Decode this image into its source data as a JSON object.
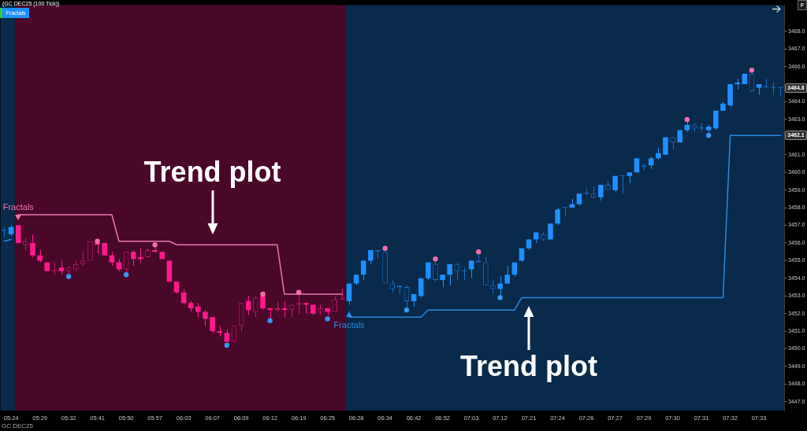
{
  "chart_data": {
    "type": "candlestick",
    "title": "(GC DEC25 (100 Tick))",
    "categories": [
      null,
      "05:24",
      null,
      null,
      null,
      "05:29",
      null,
      null,
      null,
      "05:32",
      null,
      null,
      null,
      "05:41",
      null,
      null,
      null,
      "05:50",
      null,
      null,
      null,
      "05:57",
      null,
      null,
      null,
      "06:03",
      null,
      null,
      null,
      "06:07",
      null,
      null,
      null,
      "06:09",
      null,
      null,
      null,
      "06:12",
      null,
      null,
      null,
      "06:19",
      null,
      null,
      null,
      "06:25",
      null,
      null,
      null,
      "06:28",
      null,
      null,
      null,
      "06:34",
      null,
      null,
      null,
      "06:42",
      null,
      null,
      null,
      "06:52",
      null,
      null,
      null,
      "07:03",
      null,
      null,
      null,
      "07:12",
      null,
      null,
      null,
      "07:21",
      null,
      null,
      null,
      "07:24",
      null,
      null,
      null,
      "07:26",
      null,
      null,
      null,
      "07:27",
      null,
      null,
      null,
      "07:29",
      null,
      null,
      null,
      "07:30",
      null,
      null,
      null,
      "07:31",
      null,
      null,
      null,
      "07:32",
      null,
      null,
      null,
      "07:33",
      null,
      null,
      null
    ],
    "series": [
      {
        "color": "#ff1a8c",
        "colors": [
          null,
          null,
          "#ff1a8c",
          "#c2186e",
          "#ff1a8c",
          "#ff1a8c",
          "#ff1a8c",
          "#c2186e",
          "#ff1a8c",
          "#c2186e",
          "#c2186e",
          "#c2186e",
          "#c2186e",
          "#ff1a8c",
          "#ff1a8c",
          "#ff1a8c",
          "#ff1a8c",
          "#c2186e",
          "#ff1a8c",
          "#ff1a8c",
          "#c2186e",
          "#ff1a8c",
          "#ff1a8c",
          "#ff1a8c",
          "#ff1a8c",
          "#ff1a8c",
          "#ff1a8c",
          "#ff1a8c",
          "#ff1a8c",
          "#ff1a8c",
          "#ff1a8c",
          "#ff1a8c",
          "#c2186e",
          "#c2186e",
          "#ff1a8c",
          "#c2186e",
          "#ff1a8c",
          "#ff1a8c",
          "#c2186e",
          "#ff1a8c",
          "#c2186e",
          "#c2186e",
          "#ff1a8c",
          "#ff1a8c",
          "#c2186e",
          "#ff1a8c",
          "#c2186e",
          "#c2186e",
          null,
          null,
          null,
          null,
          null,
          null,
          null,
          null,
          null,
          null,
          null,
          null,
          null,
          null,
          null,
          null,
          null,
          null,
          null,
          null,
          null,
          null,
          null,
          null,
          null,
          null,
          null,
          null,
          null,
          null,
          null,
          null,
          null,
          null,
          null,
          null,
          null,
          null,
          null,
          null,
          null,
          null,
          null,
          null,
          null,
          null,
          null,
          null,
          null,
          null,
          null,
          null,
          null,
          null,
          null,
          null,
          null,
          null,
          null,
          null,
          null
        ],
        "ohlc": [
          null,
          null,
          [
            3457.0,
            3457.0,
            3456.0,
            3456.0
          ],
          [
            3455.9,
            3456.3,
            3455.6,
            3456.1
          ],
          [
            3456.0,
            3456.5,
            3455.2,
            3455.3
          ],
          [
            3455.3,
            3455.6,
            3454.9,
            3455.0
          ],
          [
            3454.9,
            3454.9,
            3454.4,
            3454.4
          ],
          [
            3454.4,
            3454.9,
            3454.2,
            3454.4
          ],
          [
            3454.6,
            3455.0,
            3454.2,
            3454.4
          ],
          [
            3454.4,
            3454.7,
            3454.2,
            3454.6
          ],
          [
            3454.5,
            3455.0,
            3454.4,
            3454.8
          ],
          [
            3454.8,
            3455.5,
            3454.7,
            3455.0
          ],
          [
            3455.0,
            3456.1,
            3455.0,
            3456.1
          ],
          [
            3456.0,
            3456.1,
            3455.4,
            3455.9
          ],
          [
            3456.0,
            3456.0,
            3455.3,
            3455.3
          ],
          [
            3455.3,
            3455.5,
            3454.7,
            3454.9
          ],
          [
            3454.9,
            3455.1,
            3454.4,
            3454.5
          ],
          [
            3454.5,
            3455.5,
            3454.3,
            3455.5
          ],
          [
            3455.5,
            3455.6,
            3454.7,
            3455.1
          ],
          [
            3455.2,
            3455.7,
            3454.9,
            3455.1
          ],
          [
            3455.2,
            3455.7,
            3455.2,
            3455.6
          ],
          [
            3455.6,
            3455.8,
            3455.5,
            3455.5
          ],
          [
            3455.5,
            3455.5,
            3455.1,
            3455.1
          ],
          [
            3455.0,
            3455.0,
            3453.8,
            3453.8
          ],
          [
            3453.8,
            3453.8,
            3453.1,
            3453.2
          ],
          [
            3453.2,
            3453.4,
            3452.5,
            3452.6
          ],
          [
            3452.6,
            3452.7,
            3452.1,
            3452.3
          ],
          [
            3452.4,
            3452.6,
            3451.8,
            3452.1
          ],
          [
            3452.1,
            3452.2,
            3451.3,
            3451.7
          ],
          [
            3451.8,
            3451.8,
            3450.9,
            3451.0
          ],
          [
            3451.0,
            3451.3,
            3450.7,
            3450.9
          ],
          [
            3450.9,
            3451.1,
            3450.3,
            3450.4
          ],
          [
            3450.4,
            3451.3,
            3450.4,
            3451.3
          ],
          [
            3451.3,
            3452.6,
            3451.0,
            3452.6
          ],
          [
            3452.7,
            3453.0,
            3451.9,
            3452.2
          ],
          [
            3452.1,
            3453.0,
            3451.8,
            3452.9
          ],
          [
            3453.0,
            3453.0,
            3452.2,
            3452.3
          ],
          [
            3452.3,
            3452.3,
            3451.7,
            3452.2
          ],
          [
            3452.2,
            3452.7,
            3452.1,
            3452.3
          ],
          [
            3452.3,
            3452.7,
            3451.8,
            3452.2
          ],
          [
            3452.2,
            3452.5,
            3451.8,
            3452.5
          ],
          [
            3452.5,
            3453.1,
            3452.0,
            3452.6
          ],
          [
            3452.6,
            3452.6,
            3452.0,
            3452.5
          ],
          [
            3452.5,
            3452.5,
            3451.9,
            3452.0
          ],
          [
            3452.1,
            3452.5,
            3451.9,
            3452.3
          ],
          [
            3452.3,
            3452.3,
            3451.9,
            3452.1
          ],
          [
            3452.1,
            3453.0,
            3452.1,
            3452.8
          ],
          [
            3452.8,
            3453.4,
            3452.8,
            3452.8
          ],
          null,
          null,
          null,
          null,
          null,
          null,
          null,
          null,
          null,
          null,
          null,
          null,
          null,
          null,
          null,
          null,
          null,
          null,
          null,
          null,
          null,
          null,
          null,
          null,
          null,
          null,
          null,
          null,
          null,
          null,
          null,
          null,
          null,
          null,
          null,
          null,
          null,
          null,
          null,
          null,
          null,
          null,
          null,
          null,
          null,
          null,
          null,
          null,
          null,
          null,
          null,
          null,
          null,
          null,
          null,
          null,
          null,
          null,
          null,
          null,
          null
        ]
      },
      {
        "color": "#1e90ff",
        "colors": [
          "#1a6cc0",
          "#1e90ff",
          null,
          null,
          null,
          null,
          null,
          null,
          null,
          null,
          null,
          null,
          null,
          null,
          null,
          null,
          null,
          null,
          null,
          null,
          null,
          null,
          null,
          null,
          null,
          null,
          null,
          null,
          null,
          null,
          null,
          null,
          null,
          null,
          null,
          null,
          null,
          null,
          null,
          null,
          null,
          null,
          null,
          null,
          null,
          null,
          null,
          null,
          "#1e90ff",
          "#1e90ff",
          "#1e90ff",
          "#1e90ff",
          "#1a6cc0",
          "#1a6cc0",
          "#1a6cc0",
          "#1a6cc0",
          "#1a6cc0",
          "#1e90ff",
          "#1e90ff",
          "#1e90ff",
          "#1a6cc0",
          "#1e90ff",
          "#1e90ff",
          "#1a6cc0",
          "#1a6cc0",
          "#1e90ff",
          "#1a6cc0",
          "#1a6cc0",
          "#1a6cc0",
          "#1e90ff",
          "#1e90ff",
          "#1e90ff",
          "#1e90ff",
          "#1e90ff",
          "#1e90ff",
          "#1a6cc0",
          "#1e90ff",
          "#1e90ff",
          "#1a6cc0",
          "#1e90ff",
          "#1e90ff",
          "#1a6cc0",
          "#1a6cc0",
          "#1e90ff",
          "#1a6cc0",
          "#1e90ff",
          "#1a6cc0",
          "#1e90ff",
          "#1e90ff",
          "#1a6cc0",
          "#1e90ff",
          "#1e90ff",
          "#1e90ff",
          "#1a6cc0",
          "#1e90ff",
          "#1e90ff",
          "#1a6cc0",
          "#1a6cc0",
          "#1e90ff",
          "#1e90ff",
          "#1e90ff",
          "#1e90ff",
          "#1e90ff",
          "#1e90ff",
          "#1a6cc0",
          "#1e90ff",
          "#1a6cc0",
          "#1a6cc0",
          "#1a6cc0"
        ],
        "ohlc": [
          [
            3456.7,
            3456.9,
            3456.3,
            3456.7
          ],
          [
            3456.5,
            3457.0,
            3456.4,
            3456.9
          ],
          null,
          null,
          null,
          null,
          null,
          null,
          null,
          null,
          null,
          null,
          null,
          null,
          null,
          null,
          null,
          null,
          null,
          null,
          null,
          null,
          null,
          null,
          null,
          null,
          null,
          null,
          null,
          null,
          null,
          null,
          null,
          null,
          null,
          null,
          null,
          null,
          null,
          null,
          null,
          null,
          null,
          null,
          null,
          null,
          null,
          null,
          [
            3452.7,
            3453.7,
            3452.5,
            3453.7
          ],
          [
            3453.7,
            3454.2,
            3453.6,
            3454.2
          ],
          [
            3454.2,
            3455.0,
            3453.9,
            3455.0
          ],
          [
            3455.0,
            3455.6,
            3454.8,
            3455.6
          ],
          [
            3455.6,
            3455.6,
            3455.1,
            3455.5
          ],
          [
            3455.5,
            3455.7,
            3453.7,
            3453.7
          ],
          [
            3453.7,
            3453.9,
            3453.2,
            3453.4
          ],
          [
            3453.6,
            3453.6,
            3453.1,
            3453.5
          ],
          [
            3453.5,
            3453.6,
            3452.3,
            3452.7
          ],
          [
            3452.7,
            3453.1,
            3452.4,
            3453.1
          ],
          [
            3453.0,
            3454.0,
            3452.9,
            3454.0
          ],
          [
            3454.0,
            3454.9,
            3453.9,
            3454.9
          ],
          [
            3454.8,
            3455.0,
            3453.8,
            3453.9
          ],
          [
            3453.9,
            3454.2,
            3453.5,
            3454.2
          ],
          [
            3454.2,
            3454.8,
            3453.6,
            3454.8
          ],
          [
            3454.8,
            3454.9,
            3453.9,
            3454.4
          ],
          [
            3454.4,
            3454.6,
            3453.9,
            3454.4
          ],
          [
            3454.5,
            3455.0,
            3454.0,
            3455.0
          ],
          [
            3455.0,
            3455.4,
            3454.9,
            3454.9
          ],
          [
            3454.9,
            3455.2,
            3453.6,
            3453.6
          ],
          [
            3453.6,
            3453.9,
            3453.1,
            3453.4
          ],
          [
            3453.4,
            3454.1,
            3453.0,
            3453.7
          ],
          [
            3453.7,
            3454.7,
            3453.7,
            3454.2
          ],
          [
            3454.2,
            3454.9,
            3454.1,
            3454.9
          ],
          [
            3455.0,
            3455.7,
            3454.9,
            3455.7
          ],
          [
            3455.7,
            3456.2,
            3455.6,
            3456.2
          ],
          [
            3456.2,
            3456.6,
            3456.0,
            3456.6
          ],
          [
            3456.5,
            3456.6,
            3456.1,
            3456.2
          ],
          [
            3456.2,
            3457.1,
            3456.2,
            3457.1
          ],
          [
            3457.1,
            3458.0,
            3457.0,
            3457.9
          ],
          [
            3458.0,
            3458.0,
            3457.5,
            3458.0
          ],
          [
            3458.0,
            3458.5,
            3458.0,
            3458.2
          ],
          [
            3458.2,
            3458.8,
            3458.1,
            3458.8
          ],
          [
            3458.8,
            3459.1,
            3458.7,
            3458.8
          ],
          [
            3458.8,
            3459.2,
            3458.5,
            3458.6
          ],
          [
            3458.6,
            3459.3,
            3458.4,
            3459.3
          ],
          [
            3459.3,
            3459.5,
            3459.0,
            3459.0
          ],
          [
            3459.0,
            3459.8,
            3458.9,
            3459.8
          ],
          [
            3459.8,
            3459.8,
            3458.8,
            3459.8
          ],
          [
            3459.8,
            3460.0,
            3459.4,
            3460.0
          ],
          [
            3460.0,
            3460.8,
            3460.0,
            3460.8
          ],
          [
            3460.4,
            3460.5,
            3460.1,
            3460.3
          ],
          [
            3460.4,
            3460.9,
            3460.2,
            3460.8
          ],
          [
            3460.8,
            3461.4,
            3460.7,
            3461.1
          ],
          [
            3461.0,
            3462.0,
            3461.0,
            3462.0
          ],
          [
            3462.0,
            3462.0,
            3461.3,
            3461.7
          ],
          [
            3461.7,
            3462.4,
            3461.7,
            3462.4
          ],
          [
            3462.4,
            3462.9,
            3462.3,
            3462.7
          ],
          [
            3462.7,
            3462.8,
            3462.3,
            3462.5
          ],
          [
            3462.5,
            3462.8,
            3462.3,
            3462.5
          ],
          [
            3462.4,
            3462.7,
            3462.2,
            3462.6
          ],
          [
            3462.5,
            3463.5,
            3462.4,
            3463.5
          ],
          [
            3463.5,
            3464.0,
            3463.5,
            3463.9
          ],
          [
            3463.8,
            3465.0,
            3463.7,
            3465.0
          ],
          [
            3465.0,
            3465.3,
            3464.7,
            3465.1
          ],
          [
            3465.0,
            3465.6,
            3465.0,
            3465.6
          ],
          [
            3465.6,
            3465.7,
            3464.6,
            3464.6
          ],
          [
            3464.8,
            3465.0,
            3464.4,
            3465.0
          ],
          [
            3464.9,
            3465.3,
            3464.8,
            3464.8
          ],
          [
            3464.8,
            3465.1,
            3464.4,
            3464.8
          ],
          [
            3464.8,
            3464.8,
            3464.3,
            3464.8
          ]
        ]
      },
      {
        "type": "line",
        "color": "#e878b0",
        "values": [
          null,
          null,
          3457.6,
          3457.6,
          3457.6,
          3457.6,
          3457.6,
          3457.6,
          3457.6,
          3457.6,
          3457.6,
          3457.6,
          3457.6,
          3457.6,
          3457.6,
          3457.6,
          3456.1,
          3456.1,
          3456.1,
          3456.1,
          3456.1,
          3456.1,
          3456.1,
          3456.1,
          3455.9,
          3455.9,
          3455.9,
          3455.9,
          3455.9,
          3455.9,
          3455.9,
          3455.9,
          3455.9,
          3455.9,
          3455.9,
          3455.9,
          3455.9,
          3455.9,
          3455.9,
          3453.1,
          3453.1,
          3453.1,
          3453.1,
          3453.1,
          3453.1,
          3453.1,
          3453.1,
          3453.1,
          null,
          null,
          null,
          null,
          null,
          null,
          null,
          null,
          null,
          null,
          null,
          null,
          null,
          null,
          null,
          null,
          null,
          null,
          null,
          null,
          null,
          null,
          null,
          null,
          null,
          null,
          null,
          null,
          null,
          null,
          null,
          null,
          null,
          null,
          null,
          null,
          null,
          null,
          null,
          null,
          null,
          null,
          null,
          null,
          null,
          null,
          null,
          null,
          null,
          null,
          null,
          null,
          null,
          null,
          null,
          null,
          null,
          null,
          null,
          null,
          null
        ]
      },
      {
        "type": "line",
        "color": "#2b87e0",
        "values": [
          3456.1,
          3456.2,
          null,
          null,
          null,
          null,
          null,
          null,
          null,
          null,
          null,
          null,
          null,
          null,
          null,
          null,
          null,
          null,
          null,
          null,
          null,
          null,
          null,
          null,
          null,
          null,
          null,
          null,
          null,
          null,
          null,
          null,
          null,
          null,
          null,
          null,
          null,
          null,
          null,
          null,
          null,
          null,
          null,
          null,
          null,
          null,
          null,
          null,
          3451.8,
          3451.8,
          3451.8,
          3451.8,
          3451.8,
          3451.8,
          3451.8,
          3451.8,
          3451.8,
          3451.8,
          3451.8,
          3452.2,
          3452.2,
          3452.2,
          3452.2,
          3452.2,
          3452.2,
          3452.2,
          3452.2,
          3452.2,
          3452.2,
          3452.2,
          3452.2,
          3452.2,
          3452.9,
          3452.9,
          3452.9,
          3452.9,
          3452.9,
          3452.9,
          3452.9,
          3452.9,
          3452.9,
          3452.9,
          3452.9,
          3452.9,
          3452.9,
          3452.9,
          3452.9,
          3452.9,
          3452.9,
          3452.9,
          3452.9,
          3452.9,
          3452.9,
          3452.9,
          3452.9,
          3452.9,
          3452.9,
          3452.9,
          3452.9,
          3452.9,
          3452.9,
          3462.1,
          3462.1,
          3462.1,
          3462.1,
          3462.1,
          3462.1,
          3462.1,
          3462.1
        ]
      },
      {
        "type": "scatter",
        "color": "#f06eaa",
        "marker": "circle",
        "values": [
          null,
          null,
          null,
          null,
          null,
          null,
          null,
          null,
          null,
          null,
          null,
          null,
          null,
          3456.1,
          null,
          null,
          null,
          null,
          null,
          null,
          null,
          3455.9,
          null,
          null,
          null,
          null,
          null,
          null,
          null,
          null,
          null,
          null,
          null,
          null,
          null,
          null,
          3453.1,
          null,
          null,
          null,
          null,
          3453.2,
          null,
          null,
          null,
          null,
          null,
          null,
          null,
          null,
          null,
          null,
          null,
          3455.7,
          null,
          null,
          null,
          null,
          null,
          null,
          3455.1,
          null,
          null,
          null,
          null,
          null,
          3455.5,
          null,
          null,
          null,
          null,
          null,
          null,
          null,
          null,
          null,
          null,
          null,
          null,
          null,
          null,
          null,
          null,
          null,
          null,
          null,
          null,
          null,
          null,
          null,
          null,
          null,
          null,
          null,
          null,
          3463.0,
          null,
          null,
          null,
          null,
          null,
          null,
          null,
          null,
          3465.8,
          null,
          null,
          null,
          null
        ]
      },
      {
        "type": "scatter",
        "color": "#3b94ee",
        "marker": "circle",
        "values": [
          null,
          null,
          null,
          null,
          null,
          null,
          null,
          null,
          null,
          3454.1,
          null,
          null,
          null,
          null,
          null,
          null,
          null,
          3454.2,
          null,
          null,
          null,
          null,
          null,
          null,
          null,
          null,
          null,
          null,
          null,
          null,
          null,
          3450.2,
          null,
          null,
          null,
          null,
          null,
          3451.6,
          null,
          null,
          null,
          null,
          null,
          null,
          null,
          3451.7,
          null,
          null,
          null,
          null,
          null,
          null,
          null,
          null,
          null,
          null,
          3452.2,
          null,
          null,
          null,
          null,
          null,
          null,
          null,
          null,
          null,
          null,
          null,
          null,
          3452.9,
          null,
          null,
          null,
          null,
          null,
          null,
          null,
          null,
          null,
          null,
          null,
          null,
          null,
          null,
          null,
          null,
          null,
          null,
          null,
          null,
          null,
          null,
          null,
          null,
          null,
          null,
          null,
          null,
          3462.1,
          null,
          null,
          null,
          null,
          null,
          null,
          null,
          null,
          null,
          null
        ]
      }
    ],
    "ylim": [
      3446.5,
      3469.5
    ],
    "yticks": [
      {
        "value": 3447,
        "label": "3447.0"
      },
      {
        "value": 3448,
        "label": "3448.0"
      },
      {
        "value": 3449,
        "label": "3449.0"
      },
      {
        "value": 3450,
        "label": "3450.0"
      },
      {
        "value": 3451,
        "label": "3451.0"
      },
      {
        "value": 3452,
        "label": "3452.0"
      },
      {
        "value": 3453,
        "label": "3453.0"
      },
      {
        "value": 3454,
        "label": "3454.0"
      },
      {
        "value": 3455,
        "label": "3455.0"
      },
      {
        "value": 3456,
        "label": "3456.0"
      },
      {
        "value": 3457,
        "label": "3457.0"
      },
      {
        "value": 3458,
        "label": "3458.0"
      },
      {
        "value": 3459,
        "label": "3459.0"
      },
      {
        "value": 3460,
        "label": "3460.0"
      },
      {
        "value": 3461,
        "label": "3461.0"
      },
      {
        "value": 3462,
        "label": null
      },
      {
        "value": 3463,
        "label": "3463.0"
      },
      {
        "value": 3464,
        "label": "3464.0"
      },
      {
        "value": 3465,
        "label": null
      },
      {
        "value": 3466,
        "label": "3466.0"
      },
      {
        "value": 3467,
        "label": "3467.0"
      },
      {
        "value": 3468,
        "label": "3468.0"
      }
    ],
    "annotations": [
      "Fractals",
      "F",
      "GC DEC25",
      {
        "text": "Fractals",
        "y": 3457.6
      },
      {
        "text": "Fractals",
        "y": 3451.8
      },
      {
        "text": "Trend plot",
        "x": "06:07",
        "y": 3455.9
      },
      {
        "text": "Trend plot",
        "x": "07:21",
        "y": 3452.9
      },
      {
        "text": "3464.8",
        "y": 3464.8
      },
      {
        "text": "3462.1",
        "y": 3462.1
      }
    ]
  }
}
